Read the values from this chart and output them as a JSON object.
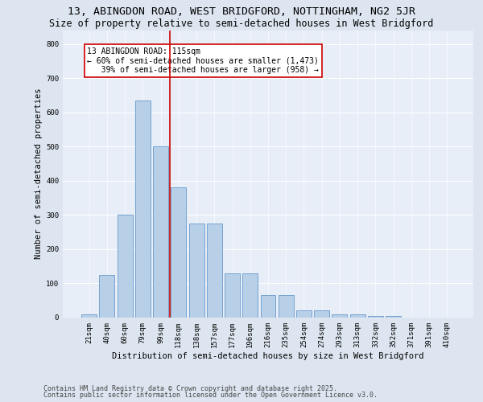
{
  "title": "13, ABINGDON ROAD, WEST BRIDGFORD, NOTTINGHAM, NG2 5JR",
  "subtitle": "Size of property relative to semi-detached houses in West Bridgford",
  "xlabel": "Distribution of semi-detached houses by size in West Bridgford",
  "ylabel": "Number of semi-detached properties",
  "footnote1": "Contains HM Land Registry data © Crown copyright and database right 2025.",
  "footnote2": "Contains public sector information licensed under the Open Government Licence v3.0.",
  "bar_labels": [
    "21sqm",
    "40sqm",
    "60sqm",
    "79sqm",
    "99sqm",
    "118sqm",
    "138sqm",
    "157sqm",
    "177sqm",
    "196sqm",
    "216sqm",
    "235sqm",
    "254sqm",
    "274sqm",
    "293sqm",
    "313sqm",
    "332sqm",
    "352sqm",
    "371sqm",
    "391sqm",
    "410sqm"
  ],
  "bar_values": [
    10,
    125,
    300,
    635,
    500,
    380,
    275,
    275,
    130,
    130,
    65,
    65,
    20,
    20,
    10,
    10,
    5,
    5,
    0,
    0,
    0
  ],
  "bar_color": "#b8cfe8",
  "bar_edge_color": "#6699cc",
  "marker_index": 5,
  "marker_color": "#cc0000",
  "annotation_line1": "13 ABINGDON ROAD: 115sqm",
  "annotation_line2": "← 60% of semi-detached houses are smaller (1,473)",
  "annotation_line3": "   39% of semi-detached houses are larger (958) →",
  "annotation_box_color": "#ffffff",
  "annotation_box_edge": "#cc0000",
  "ylim": [
    0,
    840
  ],
  "yticks": [
    0,
    100,
    200,
    300,
    400,
    500,
    600,
    700,
    800
  ],
  "bg_color": "#dde6f0",
  "plot_bg_color": "#e8eef8",
  "title_fontsize": 9.5,
  "subtitle_fontsize": 8.5,
  "axis_label_fontsize": 7.5,
  "tick_fontsize": 6.5,
  "annotation_fontsize": 7,
  "footnote_fontsize": 6
}
